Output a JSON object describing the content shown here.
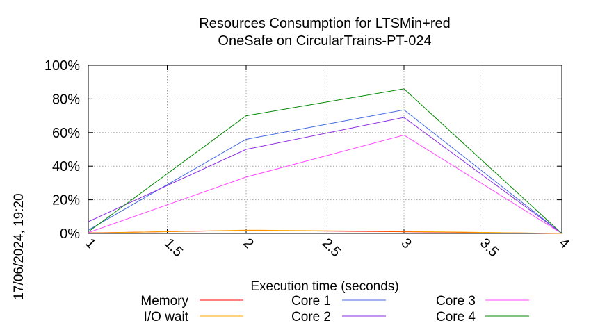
{
  "chart_data": {
    "type": "line",
    "title_lines": [
      "Resources Consumption for LTSMin+red",
      "OneSafe on CircularTrains-PT-024"
    ],
    "xlabel": "Execution time (seconds)",
    "ylabel": "",
    "xlim": [
      1,
      4
    ],
    "ylim": [
      0,
      100
    ],
    "x_ticks": [
      "1",
      "1.5",
      "2",
      "2.5",
      "3",
      "3.5",
      "4"
    ],
    "y_ticks": [
      "0%",
      "20%",
      "40%",
      "60%",
      "80%",
      "100%"
    ],
    "grid": true,
    "legend_position": "bottom",
    "timestamp": "17/06/2024, 19:20",
    "x": [
      1,
      2,
      3,
      4
    ],
    "series": [
      {
        "name": "Memory",
        "color": "#ff0000",
        "values": [
          0.3,
          1.8,
          1.0,
          0
        ]
      },
      {
        "name": "I/O wait",
        "color": "#ffa500",
        "values": [
          0.2,
          2.0,
          1.2,
          0
        ]
      },
      {
        "name": "Core 1",
        "color": "#4169e1",
        "values": [
          2,
          56,
          73.5,
          0
        ]
      },
      {
        "name": "Core 2",
        "color": "#8a2be2",
        "values": [
          7,
          50,
          69,
          0
        ]
      },
      {
        "name": "Core 3",
        "color": "#ff44ff",
        "values": [
          0.5,
          33.5,
          58.5,
          0
        ]
      },
      {
        "name": "Core 4",
        "color": "#008800",
        "values": [
          1,
          70,
          86,
          0
        ]
      }
    ]
  }
}
